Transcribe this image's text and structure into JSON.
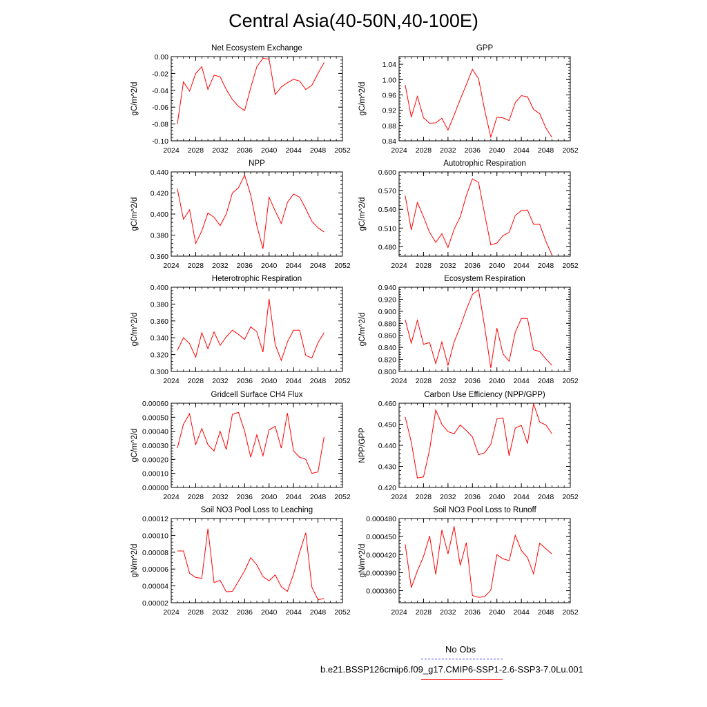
{
  "page": {
    "title": "Central Asia(40-50N,40-100E)",
    "legend": [
      {
        "label": "No Obs",
        "color": "#3a3aff",
        "style": "dashed"
      },
      {
        "label": "b.e21.BSSP126cmip6.f09_g17.CMIP6-SSP1-2.6-SSP3-7.0Lu.001",
        "color": "#ff0000",
        "style": "solid"
      }
    ]
  },
  "chart_data": [
    {
      "type": "line",
      "title": "Net Ecosystem Exchange",
      "ylabel": "gC/m^2/d",
      "xlim": [
        2024,
        2052
      ],
      "xticks": [
        "2024",
        "2028",
        "2032",
        "2036",
        "2040",
        "2044",
        "2048",
        "2052"
      ],
      "ylim": [
        -0.1,
        0.0
      ],
      "yticks": [
        "-0.10",
        "-0.08",
        "-0.06",
        "-0.04",
        "-0.02",
        "0.00"
      ],
      "line_color": "#ff0000",
      "series": [
        {
          "x": [
            2025,
            2026,
            2027,
            2028,
            2029,
            2030,
            2031,
            2032,
            2033,
            2034,
            2035,
            2036,
            2037,
            2038,
            2039,
            2040,
            2041,
            2042,
            2043,
            2044,
            2045,
            2046,
            2047,
            2048,
            2049
          ],
          "values": [
            -0.08,
            -0.03,
            -0.041,
            -0.02,
            -0.012,
            -0.039,
            -0.022,
            -0.024,
            -0.039,
            -0.051,
            -0.059,
            -0.064,
            -0.037,
            -0.012,
            -0.002,
            -0.003,
            -0.045,
            -0.036,
            -0.031,
            -0.027,
            -0.029,
            -0.039,
            -0.034,
            -0.02,
            -0.007
          ]
        }
      ]
    },
    {
      "type": "line",
      "title": "GPP",
      "ylabel": "gC/m^2/d",
      "xlim": [
        2024,
        2052
      ],
      "xticks": [
        "2024",
        "2028",
        "2032",
        "2036",
        "2040",
        "2044",
        "2048",
        "2052"
      ],
      "ylim": [
        0.84,
        1.06
      ],
      "yticks": [
        "0.84",
        "0.88",
        "0.92",
        "0.96",
        "1.00",
        "1.04"
      ],
      "line_color": "#ff0000",
      "series": [
        {
          "x": [
            2025,
            2026,
            2027,
            2028,
            2029,
            2030,
            2031,
            2032,
            2033,
            2034,
            2035,
            2036,
            2037,
            2038,
            2039,
            2040,
            2041,
            2042,
            2043,
            2044,
            2045,
            2046,
            2047,
            2048,
            2049
          ],
          "values": [
            0.986,
            0.902,
            0.956,
            0.9,
            0.886,
            0.887,
            0.899,
            0.868,
            0.907,
            0.948,
            0.987,
            1.027,
            1.002,
            0.92,
            0.85,
            0.902,
            0.9,
            0.893,
            0.94,
            0.958,
            0.955,
            0.922,
            0.911,
            0.874,
            0.849
          ]
        }
      ]
    },
    {
      "type": "line",
      "title": "NPP",
      "ylabel": "gC/m^2/d",
      "xlim": [
        2024,
        2052
      ],
      "xticks": [
        "2024",
        "2028",
        "2032",
        "2036",
        "2040",
        "2044",
        "2048",
        "2052"
      ],
      "ylim": [
        0.36,
        0.44
      ],
      "yticks": [
        "0.360",
        "0.380",
        "0.400",
        "0.420",
        "0.440"
      ],
      "line_color": "#ff0000",
      "series": [
        {
          "x": [
            2025,
            2026,
            2027,
            2028,
            2029,
            2030,
            2031,
            2032,
            2033,
            2034,
            2035,
            2036,
            2037,
            2038,
            2039,
            2040,
            2041,
            2042,
            2043,
            2044,
            2045,
            2046,
            2047,
            2048,
            2049
          ],
          "values": [
            0.424,
            0.395,
            0.404,
            0.372,
            0.384,
            0.401,
            0.397,
            0.389,
            0.4,
            0.42,
            0.425,
            0.437,
            0.418,
            0.389,
            0.367,
            0.416,
            0.403,
            0.391,
            0.411,
            0.419,
            0.416,
            0.405,
            0.393,
            0.387,
            0.383
          ]
        }
      ]
    },
    {
      "type": "line",
      "title": "Autotrophic Respiration",
      "ylabel": "gC/m^2/d",
      "xlim": [
        2024,
        2052
      ],
      "xticks": [
        "2024",
        "2028",
        "2032",
        "2036",
        "2040",
        "2044",
        "2048",
        "2052"
      ],
      "ylim": [
        0.465,
        0.6
      ],
      "yticks": [
        "0.480",
        "0.510",
        "0.540",
        "0.570",
        "0.600"
      ],
      "line_color": "#ff0000",
      "series": [
        {
          "x": [
            2025,
            2026,
            2027,
            2028,
            2029,
            2030,
            2031,
            2032,
            2033,
            2034,
            2035,
            2036,
            2037,
            2038,
            2039,
            2040,
            2041,
            2042,
            2043,
            2044,
            2045,
            2046,
            2047,
            2048,
            2049
          ],
          "values": [
            0.562,
            0.507,
            0.551,
            0.528,
            0.503,
            0.487,
            0.501,
            0.479,
            0.508,
            0.528,
            0.562,
            0.589,
            0.583,
            0.532,
            0.483,
            0.486,
            0.498,
            0.503,
            0.53,
            0.538,
            0.539,
            0.516,
            0.516,
            0.489,
            0.467
          ]
        }
      ]
    },
    {
      "type": "line",
      "title": "Heterotrophic Respiration",
      "ylabel": "gC/m^2/d",
      "xlim": [
        2024,
        2052
      ],
      "xticks": [
        "2024",
        "2028",
        "2032",
        "2036",
        "2040",
        "2044",
        "2048",
        "2052"
      ],
      "ylim": [
        0.3,
        0.4
      ],
      "yticks": [
        "0.300",
        "0.320",
        "0.340",
        "0.360",
        "0.380",
        "0.400"
      ],
      "line_color": "#ff0000",
      "series": [
        {
          "x": [
            2025,
            2026,
            2027,
            2028,
            2029,
            2030,
            2031,
            2032,
            2033,
            2034,
            2035,
            2036,
            2037,
            2038,
            2039,
            2040,
            2041,
            2042,
            2043,
            2044,
            2045,
            2046,
            2047,
            2048,
            2049
          ],
          "values": [
            0.325,
            0.34,
            0.333,
            0.317,
            0.346,
            0.327,
            0.347,
            0.331,
            0.341,
            0.349,
            0.344,
            0.338,
            0.353,
            0.347,
            0.323,
            0.386,
            0.332,
            0.313,
            0.335,
            0.349,
            0.349,
            0.319,
            0.316,
            0.334,
            0.346
          ]
        }
      ]
    },
    {
      "type": "line",
      "title": "Ecosystem Respiration",
      "ylabel": "gC/m^2/d",
      "xlim": [
        2024,
        2052
      ],
      "xticks": [
        "2024",
        "2028",
        "2032",
        "2036",
        "2040",
        "2044",
        "2048",
        "2052"
      ],
      "ylim": [
        0.8,
        0.94
      ],
      "yticks": [
        "0.800",
        "0.820",
        "0.840",
        "0.860",
        "0.880",
        "0.900",
        "0.920",
        "0.940"
      ],
      "line_color": "#ff0000",
      "series": [
        {
          "x": [
            2025,
            2026,
            2027,
            2028,
            2029,
            2030,
            2031,
            2032,
            2033,
            2034,
            2035,
            2036,
            2037,
            2038,
            2039,
            2040,
            2041,
            2042,
            2043,
            2044,
            2045,
            2046,
            2047,
            2048,
            2049
          ],
          "values": [
            0.886,
            0.847,
            0.885,
            0.845,
            0.848,
            0.813,
            0.849,
            0.81,
            0.849,
            0.874,
            0.903,
            0.928,
            0.936,
            0.874,
            0.806,
            0.872,
            0.829,
            0.817,
            0.865,
            0.888,
            0.888,
            0.836,
            0.833,
            0.821,
            0.81
          ]
        }
      ]
    },
    {
      "type": "line",
      "title": "Gridcell Surface CH4 Flux",
      "ylabel": "gC/m^2/d",
      "xlim": [
        2024,
        2052
      ],
      "xticks": [
        "2024",
        "2028",
        "2032",
        "2036",
        "2040",
        "2044",
        "2048",
        "2052"
      ],
      "ylim": [
        0.0,
        0.0006
      ],
      "yticks": [
        "0.00000",
        "0.00010",
        "0.00020",
        "0.00030",
        "0.00040",
        "0.00050",
        "0.00060"
      ],
      "line_color": "#ff0000",
      "series": [
        {
          "x": [
            2025,
            2026,
            2027,
            2028,
            2029,
            2030,
            2031,
            2032,
            2033,
            2034,
            2035,
            2036,
            2037,
            2038,
            2039,
            2040,
            2041,
            2042,
            2043,
            2044,
            2045,
            2046,
            2047,
            2048,
            2049
          ],
          "values": [
            0.00028,
            0.00045,
            0.000525,
            0.000305,
            0.00042,
            0.000305,
            0.00026,
            0.0004,
            0.00027,
            0.00052,
            0.000535,
            0.0004,
            0.000215,
            0.000375,
            0.000225,
            0.00041,
            0.000435,
            0.00028,
            0.00053,
            0.00026,
            0.000215,
            0.0002,
            0.0001,
            0.00011,
            0.00036
          ]
        }
      ]
    },
    {
      "type": "line",
      "title": "Carbon Use Efficiency (NPP/GPP)",
      "ylabel": "NPP/GPP",
      "xlim": [
        2024,
        2052
      ],
      "xticks": [
        "2024",
        "2028",
        "2032",
        "2036",
        "2040",
        "2044",
        "2048",
        "2052"
      ],
      "ylim": [
        0.42,
        0.46
      ],
      "yticks": [
        "0.420",
        "0.430",
        "0.440",
        "0.450",
        "0.460"
      ],
      "line_color": "#ff0000",
      "series": [
        {
          "x": [
            2025,
            2026,
            2027,
            2028,
            2029,
            2030,
            2031,
            2032,
            2033,
            2034,
            2035,
            2036,
            2037,
            2038,
            2039,
            2040,
            2041,
            2042,
            2043,
            2044,
            2045,
            2046,
            2047,
            2048,
            2049
          ],
          "values": [
            0.4535,
            0.4415,
            0.4245,
            0.425,
            0.438,
            0.4568,
            0.45,
            0.4465,
            0.4455,
            0.4497,
            0.447,
            0.444,
            0.4355,
            0.4365,
            0.4405,
            0.4525,
            0.453,
            0.435,
            0.4482,
            0.4495,
            0.4408,
            0.4598,
            0.451,
            0.4497,
            0.4455
          ]
        }
      ]
    },
    {
      "type": "line",
      "title": "Soil NO3 Pool Loss to Leaching",
      "ylabel": "gN/m^2/d",
      "xlim": [
        2024,
        2052
      ],
      "xticks": [
        "2024",
        "2028",
        "2032",
        "2036",
        "2040",
        "2044",
        "2048",
        "2052"
      ],
      "ylim": [
        2e-05,
        0.00012
      ],
      "yticks": [
        "0.00002",
        "0.00004",
        "0.00006",
        "0.00008",
        "0.00010",
        "0.00012"
      ],
      "line_color": "#ff0000",
      "series": [
        {
          "x": [
            2025,
            2026,
            2027,
            2028,
            2029,
            2030,
            2031,
            2032,
            2033,
            2034,
            2035,
            2036,
            2037,
            2038,
            2039,
            2040,
            2041,
            2042,
            2043,
            2044,
            2045,
            2046,
            2047,
            2048,
            2049
          ],
          "values": [
            8.15e-05,
            8.15e-05,
            5.5e-05,
            5e-05,
            4.9e-05,
            0.000108,
            4.4e-05,
            4.65e-05,
            3.3e-05,
            3.35e-05,
            4.55e-05,
            5.8e-05,
            7.35e-05,
            6.5e-05,
            5.1e-05,
            4.6e-05,
            5.3e-05,
            3.9e-05,
            3.35e-05,
            5.4e-05,
            8e-05,
            0.000103,
            3.85e-05,
            2.35e-05,
            2.5e-05
          ]
        }
      ]
    },
    {
      "type": "line",
      "title": "Soil NO3 Pool Loss to Runoff",
      "ylabel": "gN/m^2/d",
      "xlim": [
        2024,
        2052
      ],
      "xticks": [
        "2024",
        "2028",
        "2032",
        "2036",
        "2040",
        "2044",
        "2048",
        "2052"
      ],
      "ylim": [
        0.00034,
        0.00048
      ],
      "yticks": [
        "0.000360",
        "0.000390",
        "0.000420",
        "0.000450",
        "0.000480"
      ],
      "line_color": "#ff0000",
      "series": [
        {
          "x": [
            2025,
            2026,
            2027,
            2028,
            2029,
            2030,
            2031,
            2032,
            2033,
            2034,
            2035,
            2036,
            2037,
            2038,
            2039,
            2040,
            2041,
            2042,
            2043,
            2044,
            2045,
            2046,
            2047,
            2048,
            2049
          ],
          "values": [
            0.000437,
            0.000365,
            0.000393,
            0.000417,
            0.000451,
            0.000387,
            0.000461,
            0.000421,
            0.000467,
            0.000402,
            0.00044,
            0.000352,
            0.000349,
            0.00035,
            0.000361,
            0.00042,
            0.000413,
            0.00041,
            0.000452,
            0.000427,
            0.000415,
            0.000388,
            0.000439,
            0.00043,
            0.000421
          ]
        }
      ]
    }
  ]
}
